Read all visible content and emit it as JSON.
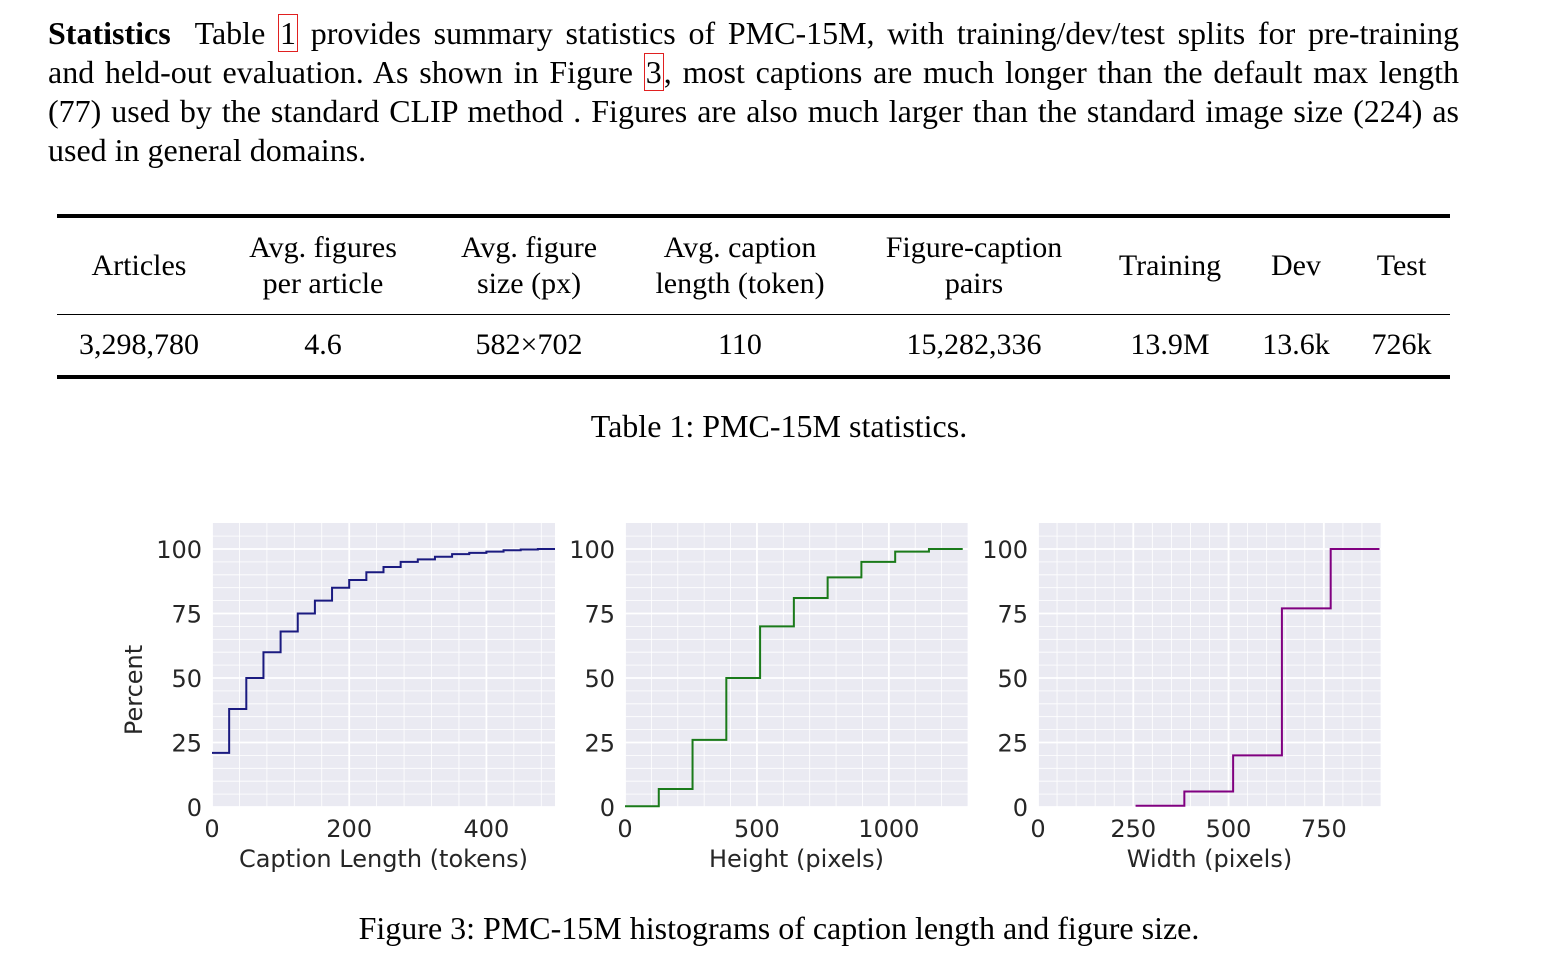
{
  "paragraph": {
    "heading": "Statistics",
    "t1": "Table ",
    "ref_table": "1",
    "t2": " provides summary statistics of PMC-15M, with training/dev/test splits for pre-training and held-out evaluation.  As shown in Figure ",
    "ref_fig": "3",
    "t3": ", most captions are much longer than the default max length (77) used by the standard CLIP method .  Figures are also much larger than the standard image size (224) as used in general domains."
  },
  "table": {
    "headers": [
      [
        "Articles"
      ],
      [
        "Avg. figures",
        "per article"
      ],
      [
        "Avg. figure",
        "size (px)"
      ],
      [
        "Avg. caption",
        "length (token)"
      ],
      [
        "Figure-caption",
        "pairs"
      ],
      [
        "Training"
      ],
      [
        "Dev"
      ],
      [
        "Test"
      ]
    ],
    "values": [
      "3,298,780",
      "4.6",
      "582×702",
      "110",
      "15,282,336",
      "13.9M",
      "13.6k",
      "726k"
    ],
    "caption": "Table 1: PMC-15M statistics."
  },
  "figure_caption": "Figure 3: PMC-15M histograms of caption length and figure size.",
  "chart_data": [
    {
      "type": "line",
      "step": "cumulative-histogram",
      "color": "#1a1a80",
      "xlabel": "Caption Length (tokens)",
      "ylabel": "Percent",
      "xlim": [
        0,
        500
      ],
      "ylim": [
        0,
        100
      ],
      "xticks": [
        0,
        200,
        400
      ],
      "yticks": [
        0,
        25,
        50,
        75,
        100
      ],
      "bin_edges": [
        0,
        25,
        50,
        75,
        100,
        125,
        150,
        175,
        200,
        225,
        250,
        275,
        300,
        325,
        350,
        375,
        400,
        425,
        450,
        475,
        500
      ],
      "values": [
        21,
        38,
        50,
        60,
        68,
        75,
        80,
        85,
        88,
        91,
        93,
        95,
        96,
        97,
        98,
        98.5,
        99,
        99.5,
        99.8,
        100
      ]
    },
    {
      "type": "line",
      "step": "cumulative-histogram",
      "color": "#1a7a1a",
      "xlabel": "Height (pixels)",
      "ylabel": "",
      "xlim": [
        0,
        1300
      ],
      "ylim": [
        0,
        100
      ],
      "xticks": [
        0,
        500,
        1000
      ],
      "yticks": [
        0,
        25,
        50,
        75,
        100
      ],
      "bin_edges": [
        0,
        128,
        256,
        384,
        512,
        640,
        768,
        896,
        1024,
        1152,
        1280
      ],
      "values": [
        0.3,
        7,
        26,
        50,
        70,
        81,
        89,
        95,
        99,
        100
      ]
    },
    {
      "type": "line",
      "step": "cumulative-histogram",
      "color": "#800080",
      "xlabel": "Width (pixels)",
      "ylabel": "",
      "xlim": [
        0,
        900
      ],
      "ylim": [
        0,
        100
      ],
      "xticks": [
        0,
        250,
        500,
        750
      ],
      "yticks": [
        0,
        25,
        50,
        75,
        100
      ],
      "bin_edges": [
        256,
        384,
        512,
        640,
        768,
        896
      ],
      "values": [
        0.5,
        6,
        20,
        77,
        100
      ]
    }
  ]
}
